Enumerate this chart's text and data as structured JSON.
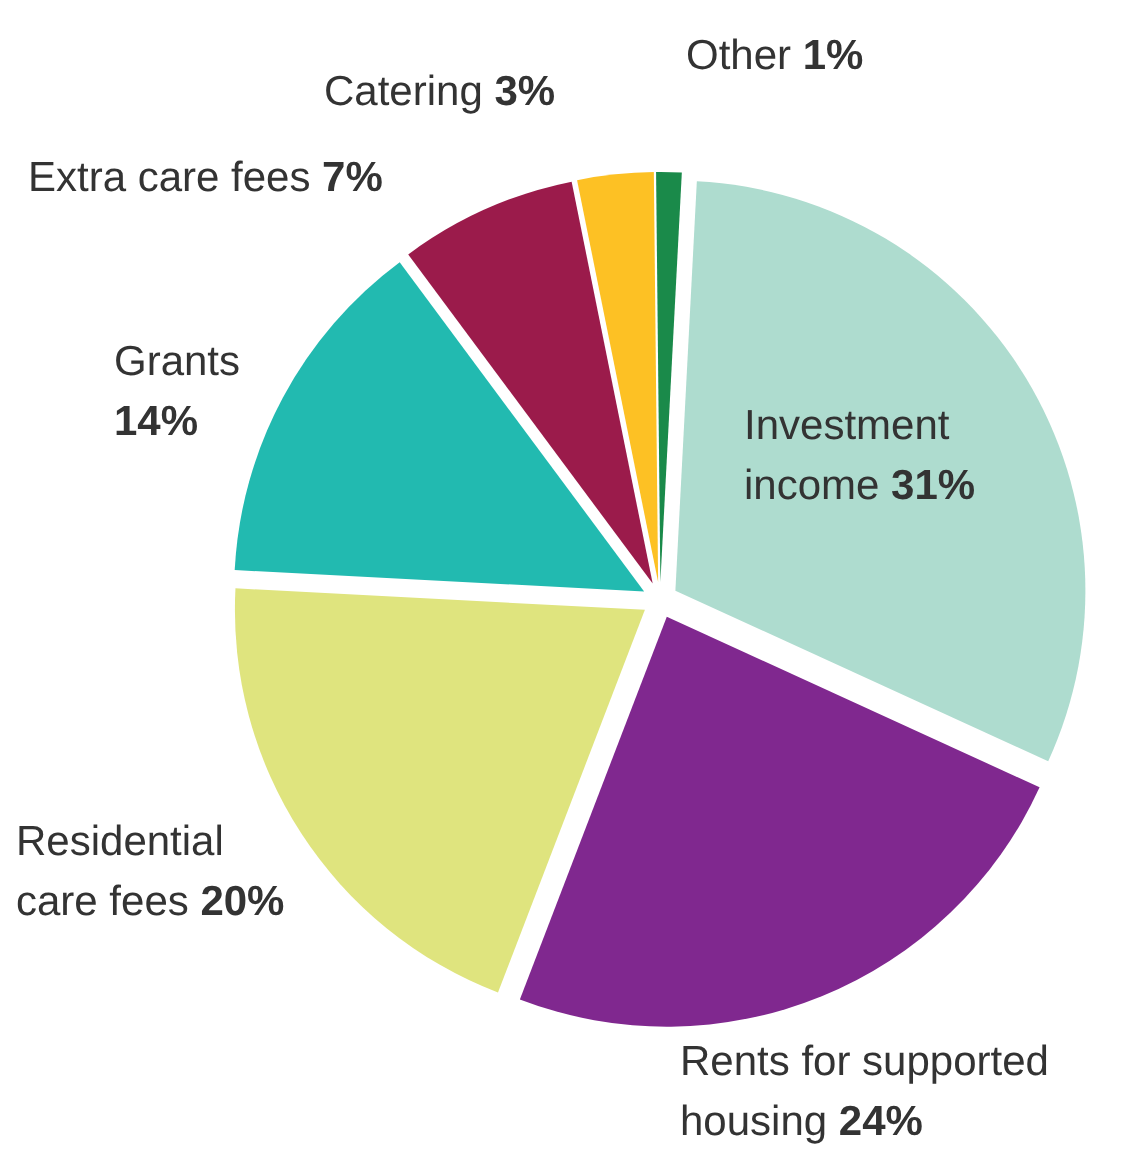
{
  "chart_data": {
    "type": "pie",
    "categories": [
      "Investment income",
      "Rents for supported housing",
      "Residential care fees",
      "Grants",
      "Extra care fees",
      "Catering",
      "Other"
    ],
    "values": [
      31,
      24,
      20,
      14,
      7,
      3,
      1
    ],
    "value_labels": [
      "31%",
      "24%",
      "20%",
      "14%",
      "7%",
      "3%",
      "1%"
    ],
    "colors": [
      "#aedccf",
      "#80288f",
      "#dfe47e",
      "#22bab0",
      "#9b1b4b",
      "#fdc124",
      "#1a8a4a"
    ]
  }
}
